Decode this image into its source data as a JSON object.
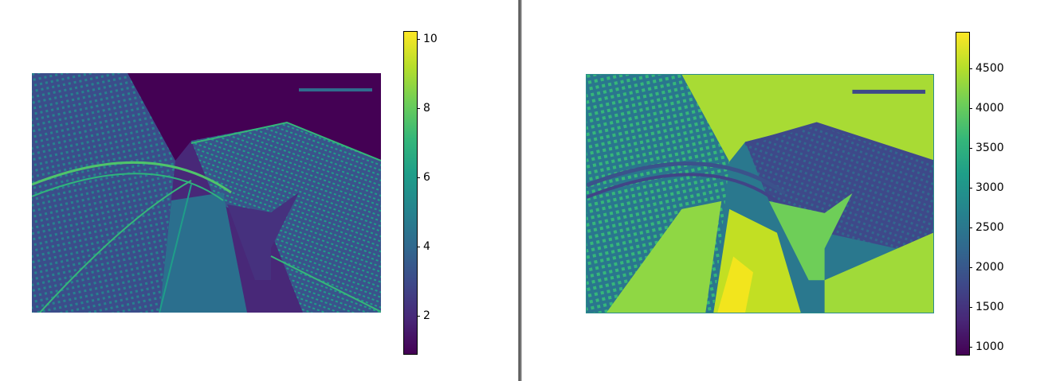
{
  "chart_data": [
    {
      "type": "heatmap",
      "title": "",
      "xlabel": "",
      "ylabel": "",
      "axes_visible": false,
      "colormap": "viridis",
      "color_range": [
        0.9,
        10.2
      ],
      "colorbar_ticks": [
        2,
        4,
        6,
        8,
        10
      ],
      "colorbar_tick_labels": [
        "2",
        "4",
        "6",
        "8",
        "10"
      ],
      "colorbar_position": "right",
      "description_values": "edge-strength map of a city view from under an arched structure; dark purple (≈1–2) in smooth regions such as sky, teal-green (≈5–7) along building edges and window grids"
    },
    {
      "type": "heatmap",
      "title": "",
      "xlabel": "",
      "ylabel": "",
      "axes_visible": false,
      "colormap": "viridis",
      "color_range": [
        900,
        4950
      ],
      "colorbar_ticks": [
        1000,
        1500,
        2000,
        2500,
        3000,
        3500,
        4000,
        4500
      ],
      "colorbar_tick_labels": [
        "1000",
        "1500",
        "2000",
        "2500",
        "3000",
        "3500",
        "4000",
        "4500"
      ],
      "colorbar_position": "right",
      "description_values": "smoothed intensity map of the same scene; sky region high (≈4200), building facades low (≈1200–2000), bright yellow patches (≈4700) near the bottom"
    }
  ],
  "palette": {
    "viridis": [
      "#440154",
      "#482878",
      "#3e4989",
      "#31688e",
      "#26828e",
      "#1f9e89",
      "#35b779",
      "#6ece58",
      "#b5de2b",
      "#fde725"
    ]
  }
}
